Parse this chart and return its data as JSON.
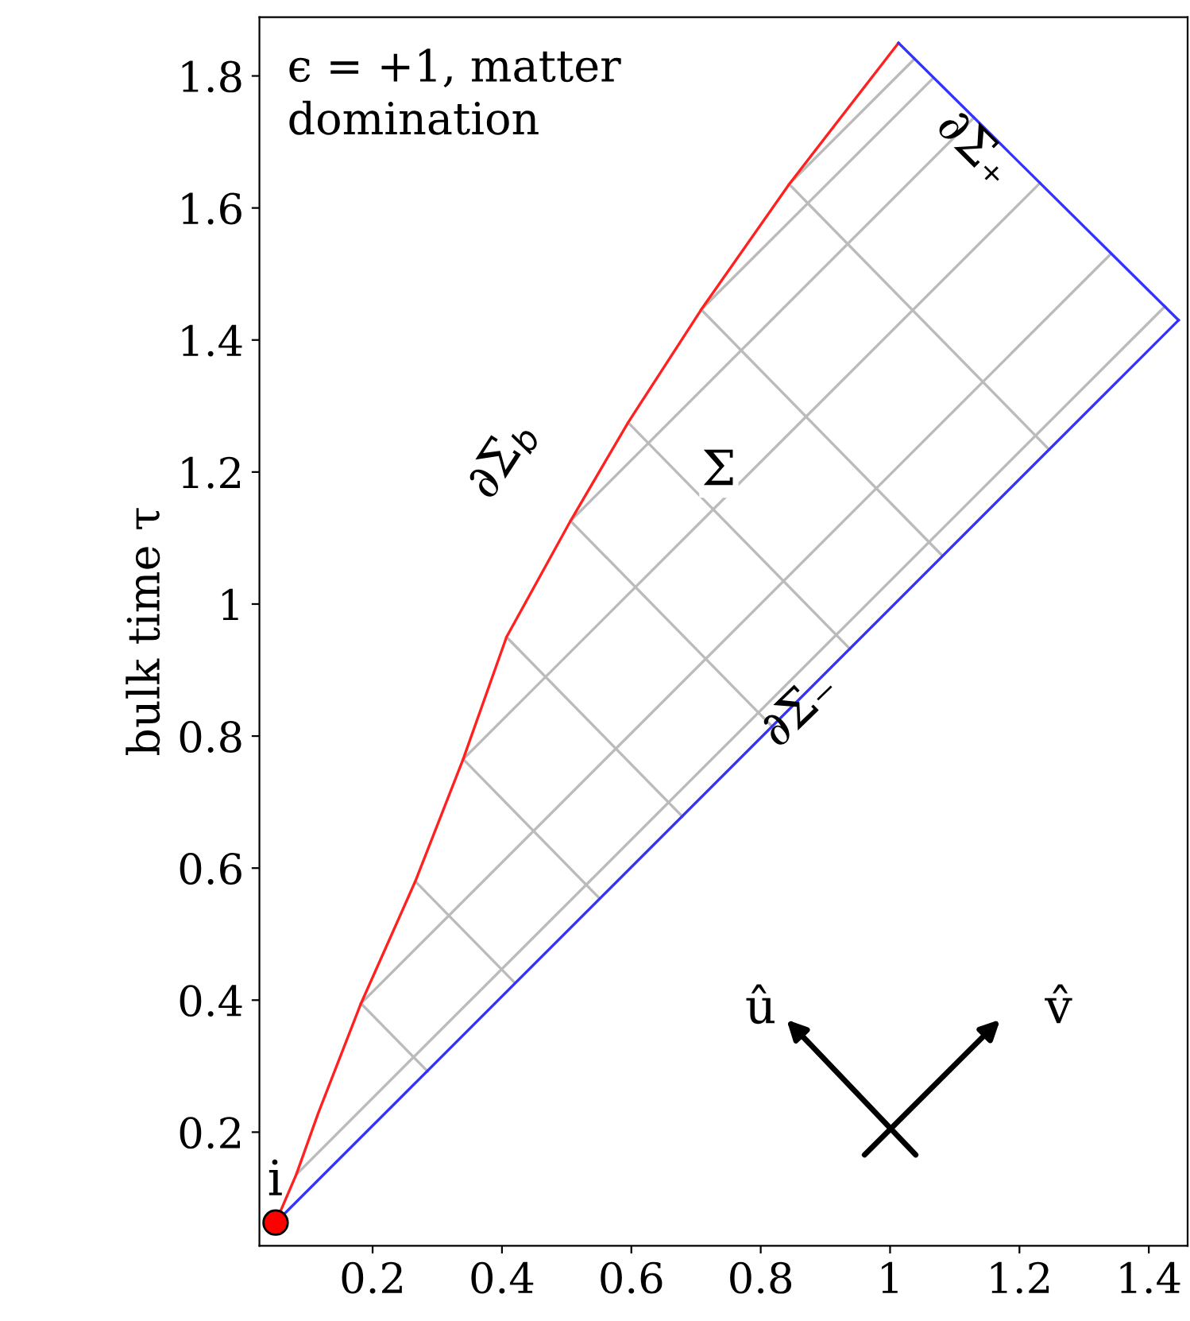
{
  "chart_data": {
    "type": "line",
    "title": "ϵ = +1, matter\ndomination",
    "ylabel": "bulk time τ",
    "xlim": [
      0.025,
      1.46
    ],
    "ylim": [
      0.028,
      1.889
    ],
    "xticks": [
      0.2,
      0.4,
      0.6,
      0.8,
      1,
      1.2,
      1.4
    ],
    "yticks": [
      0.2,
      0.4,
      0.6,
      0.8,
      1,
      1.2,
      1.4,
      1.6,
      1.8
    ],
    "grid": false,
    "legend": false,
    "series": [
      {
        "color": "#bbbbbb",
        "x": [
          0.844,
          1.246
        ],
        "values": [
          1.636,
          1.234
        ]
      },
      {
        "color": "#bbbbbb",
        "x": [
          0.708,
          1.081
        ],
        "values": [
          1.446,
          1.073
        ]
      },
      {
        "color": "#bbbbbb",
        "x": [
          0.595,
          0.938
        ],
        "values": [
          1.275,
          0.932
        ]
      },
      {
        "color": "#bbbbbb",
        "x": [
          0.506,
          0.818
        ],
        "values": [
          1.126,
          0.814
        ]
      },
      {
        "color": "#bbbbbb",
        "x": [
          0.407,
          0.679
        ],
        "values": [
          0.95,
          0.678
        ]
      },
      {
        "color": "#bbbbbb",
        "x": [
          0.34,
          0.551
        ],
        "values": [
          0.765,
          0.554
        ]
      },
      {
        "color": "#bbbbbb",
        "x": [
          0.266,
          0.42
        ],
        "values": [
          0.58,
          0.426
        ]
      },
      {
        "color": "#bbbbbb",
        "x": [
          0.182,
          0.285
        ],
        "values": [
          0.395,
          0.292
        ]
      },
      {
        "color": "#bbbbbb",
        "x": [
          0.844,
          1.038
        ],
        "values": [
          1.636,
          1.826
        ]
      },
      {
        "color": "#bbbbbb",
        "x": [
          0.708,
          1.067
        ],
        "values": [
          1.446,
          1.797
        ]
      },
      {
        "color": "#bbbbbb",
        "x": [
          0.506,
          1.13
        ],
        "values": [
          1.126,
          1.737
        ]
      },
      {
        "color": "#bbbbbb",
        "x": [
          0.34,
          1.232
        ],
        "values": [
          0.765,
          1.638
        ]
      },
      {
        "color": "#bbbbbb",
        "x": [
          0.182,
          1.342
        ],
        "values": [
          0.395,
          1.531
        ]
      },
      {
        "color": "#bbbbbb",
        "x": [
          0.082,
          1.425
        ],
        "values": [
          0.136,
          1.451
        ]
      },
      {
        "color": "#ff2020",
        "x": [
          0.05,
          0.082,
          0.116,
          0.182,
          0.266,
          0.34,
          0.407,
          0.506,
          0.595,
          0.708,
          0.844,
          1.013
        ],
        "values": [
          0.063,
          0.136,
          0.229,
          0.395,
          0.58,
          0.765,
          0.95,
          1.126,
          1.275,
          1.446,
          1.636,
          1.85
        ]
      },
      {
        "color": "#3333ff",
        "x": [
          0.05,
          1.446
        ],
        "values": [
          0.063,
          1.43
        ]
      },
      {
        "color": "#3333ff",
        "x": [
          1.013,
          1.446
        ],
        "values": [
          1.85,
          1.43
        ]
      },
      {
        "type": "scatter",
        "color": "#ff0000",
        "marker": "circle",
        "x": [
          0.05
        ],
        "values": [
          0.063
        ]
      }
    ],
    "annotations": [
      "∂Σ$_{b}$",
      "∂Σ₊",
      "∂Σ₋",
      "Σ",
      "i",
      "û",
      "v̂"
    ]
  }
}
